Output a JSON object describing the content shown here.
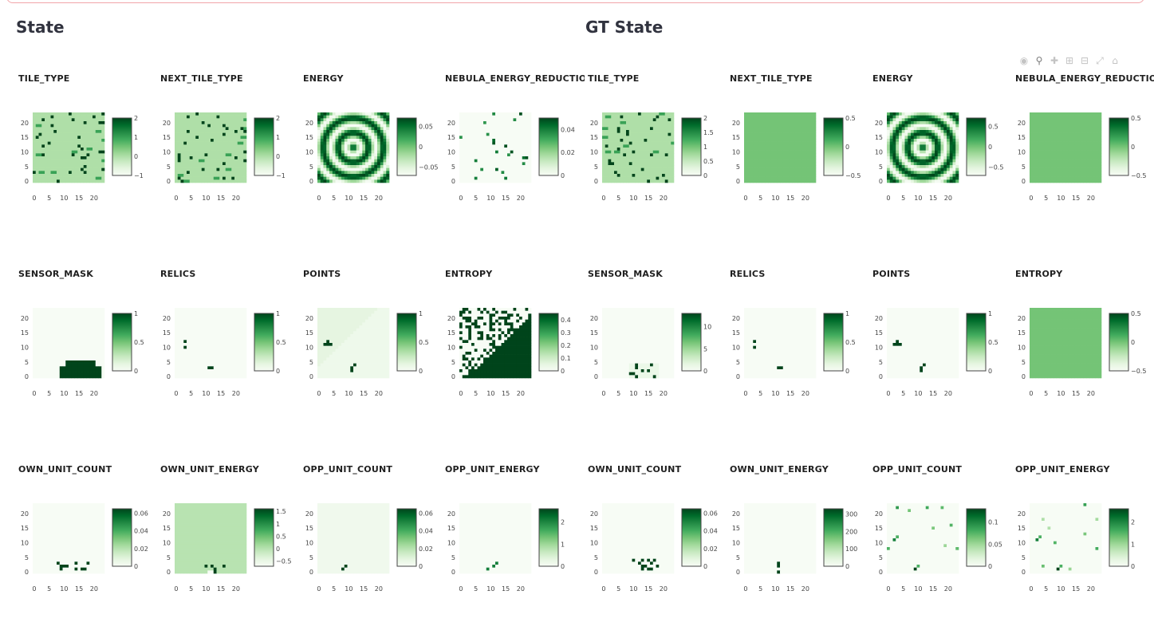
{
  "sections": [
    {
      "title": "State"
    },
    {
      "title": "GT State"
    }
  ],
  "toolbar": {
    "icons": [
      "camera-icon",
      "zoom-icon",
      "pan-icon",
      "zoom-in-icon",
      "zoom-out-icon",
      "autoscale-icon",
      "home-icon"
    ]
  },
  "colors": {
    "colorscale": "Greens",
    "scale_light": "#f7fcf5",
    "scale_dark": "#00441b",
    "alert_border": "#f2a5a9"
  },
  "chart_data": [
    {
      "type": "heatmap",
      "section": "State",
      "title": "TILE_TYPE",
      "pattern": "tiles",
      "x_ticks": [
        "0",
        "5",
        "10",
        "15",
        "20"
      ],
      "y_ticks": [
        "0",
        "5",
        "10",
        "15",
        "20"
      ],
      "colorbar_ticks": [
        "2",
        "1",
        "0",
        "−1"
      ],
      "zrange": [
        -1,
        2
      ]
    },
    {
      "type": "heatmap",
      "section": "State",
      "title": "NEXT_TILE_TYPE",
      "pattern": "tiles",
      "x_ticks": [
        "0",
        "5",
        "10",
        "15",
        "20"
      ],
      "y_ticks": [
        "0",
        "5",
        "10",
        "15",
        "20"
      ],
      "colorbar_ticks": [
        "2",
        "1",
        "0",
        "−1"
      ],
      "zrange": [
        -1,
        2
      ]
    },
    {
      "type": "heatmap",
      "section": "State",
      "title": "ENERGY",
      "pattern": "rings",
      "x_ticks": [
        "0",
        "5",
        "10",
        "15",
        "20"
      ],
      "y_ticks": [
        "0",
        "5",
        "10",
        "15",
        "20"
      ],
      "colorbar_ticks": [
        "0.05",
        "0",
        "−0.05"
      ],
      "zrange": [
        -0.07,
        0.07
      ]
    },
    {
      "type": "heatmap",
      "section": "State",
      "title": "NEBULA_ENERGY_REDUCTION",
      "pattern": "sparse",
      "x_ticks": [
        "0",
        "5",
        "10",
        "15",
        "20"
      ],
      "y_ticks": [
        "0",
        "5",
        "10",
        "15",
        "20"
      ],
      "colorbar_ticks": [
        "0.04",
        "0.02",
        "0"
      ],
      "zrange": [
        0,
        0.05
      ]
    },
    {
      "type": "heatmap",
      "section": "GT State",
      "title": "TILE_TYPE",
      "pattern": "tiles",
      "x_ticks": [
        "0",
        "5",
        "10",
        "15",
        "20"
      ],
      "y_ticks": [
        "0",
        "5",
        "10",
        "15",
        "20"
      ],
      "colorbar_ticks": [
        "2",
        "1.5",
        "1",
        "0.5",
        "0"
      ],
      "zrange": [
        0,
        2
      ]
    },
    {
      "type": "heatmap",
      "section": "GT State",
      "title": "NEXT_TILE_TYPE",
      "pattern": "uniform",
      "x_ticks": [
        "0",
        "5",
        "10",
        "15",
        "20"
      ],
      "y_ticks": [
        "0",
        "5",
        "10",
        "15",
        "20"
      ],
      "colorbar_ticks": [
        "0.5",
        "0",
        "−0.5"
      ],
      "zrange": [
        -0.5,
        0.5
      ]
    },
    {
      "type": "heatmap",
      "section": "GT State",
      "title": "ENERGY",
      "pattern": "rings",
      "x_ticks": [
        "0",
        "5",
        "10",
        "15",
        "20"
      ],
      "y_ticks": [
        "0",
        "5",
        "10",
        "15",
        "20"
      ],
      "colorbar_ticks": [
        "0.5",
        "0",
        "−0.5"
      ],
      "zrange": [
        -0.7,
        0.7
      ]
    },
    {
      "type": "heatmap",
      "section": "GT State",
      "title": "NEBULA_ENERGY_REDUCTION",
      "pattern": "uniform",
      "x_ticks": [
        "0",
        "5",
        "10",
        "15",
        "20"
      ],
      "y_ticks": [
        "0",
        "5",
        "10",
        "15",
        "20"
      ],
      "colorbar_ticks": [
        "0.5",
        "0",
        "−0.5"
      ],
      "zrange": [
        -0.5,
        0.5
      ]
    },
    {
      "type": "heatmap",
      "section": "State",
      "title": "SENSOR_MASK",
      "pattern": "mask",
      "x_ticks": [
        "0",
        "5",
        "10",
        "15",
        "20"
      ],
      "y_ticks": [
        "0",
        "5",
        "10",
        "15",
        "20"
      ],
      "colorbar_ticks": [
        "1",
        "0.5",
        "0"
      ],
      "zrange": [
        0,
        1
      ]
    },
    {
      "type": "heatmap",
      "section": "State",
      "title": "RELICS",
      "pattern": "relics",
      "x_ticks": [
        "0",
        "5",
        "10",
        "15",
        "20"
      ],
      "y_ticks": [
        "0",
        "5",
        "10",
        "15",
        "20"
      ],
      "colorbar_ticks": [
        "1",
        "0.5",
        "0"
      ],
      "zrange": [
        0,
        1
      ]
    },
    {
      "type": "heatmap",
      "section": "State",
      "title": "POINTS",
      "pattern": "points",
      "x_ticks": [
        "0",
        "5",
        "10",
        "15",
        "20"
      ],
      "y_ticks": [
        "0",
        "5",
        "10",
        "15",
        "20"
      ],
      "colorbar_ticks": [
        "1",
        "0.5",
        "0"
      ],
      "zrange": [
        0,
        1
      ]
    },
    {
      "type": "heatmap",
      "section": "State",
      "title": "ENTROPY",
      "pattern": "entropy",
      "x_ticks": [
        "0",
        "5",
        "10",
        "15",
        "20"
      ],
      "y_ticks": [
        "0",
        "5",
        "10",
        "15",
        "20"
      ],
      "colorbar_ticks": [
        "0.4",
        "0.3",
        "0.2",
        "0.1",
        "0"
      ],
      "zrange": [
        0,
        0.45
      ]
    },
    {
      "type": "heatmap",
      "section": "GT State",
      "title": "SENSOR_MASK",
      "pattern": "sensor_gt",
      "x_ticks": [
        "0",
        "5",
        "10",
        "15",
        "20"
      ],
      "y_ticks": [
        "0",
        "5",
        "10",
        "15",
        "20"
      ],
      "colorbar_ticks": [
        "10",
        "5",
        "0"
      ],
      "zrange": [
        0,
        13
      ]
    },
    {
      "type": "heatmap",
      "section": "GT State",
      "title": "RELICS",
      "pattern": "relics",
      "x_ticks": [
        "0",
        "5",
        "10",
        "15",
        "20"
      ],
      "y_ticks": [
        "0",
        "5",
        "10",
        "15",
        "20"
      ],
      "colorbar_ticks": [
        "1",
        "0.5",
        "0"
      ],
      "zrange": [
        0,
        1
      ]
    },
    {
      "type": "heatmap",
      "section": "GT State",
      "title": "POINTS",
      "pattern": "points_gt",
      "x_ticks": [
        "0",
        "5",
        "10",
        "15",
        "20"
      ],
      "y_ticks": [
        "0",
        "5",
        "10",
        "15",
        "20"
      ],
      "colorbar_ticks": [
        "1",
        "0.5",
        "0"
      ],
      "zrange": [
        0,
        1
      ]
    },
    {
      "type": "heatmap",
      "section": "GT State",
      "title": "ENTROPY",
      "pattern": "uniform",
      "x_ticks": [
        "0",
        "5",
        "10",
        "15",
        "20"
      ],
      "y_ticks": [
        "0",
        "5",
        "10",
        "15",
        "20"
      ],
      "colorbar_ticks": [
        "0.5",
        "0",
        "−0.5"
      ],
      "zrange": [
        -0.5,
        0.5
      ]
    },
    {
      "type": "heatmap",
      "section": "State",
      "title": "OWN_UNIT_COUNT",
      "pattern": "units_top",
      "x_ticks": [
        "0",
        "5",
        "10",
        "15",
        "20"
      ],
      "y_ticks": [
        "0",
        "5",
        "10",
        "15",
        "20"
      ],
      "colorbar_ticks": [
        "0.06",
        "0.04",
        "0.02",
        "0"
      ],
      "zrange": [
        0,
        0.065
      ]
    },
    {
      "type": "heatmap",
      "section": "State",
      "title": "OWN_UNIT_ENERGY",
      "pattern": "own_energy",
      "x_ticks": [
        "0",
        "5",
        "10",
        "15",
        "20"
      ],
      "y_ticks": [
        "0",
        "5",
        "10",
        "15",
        "20"
      ],
      "colorbar_ticks": [
        "1.5",
        "1",
        "0.5",
        "0",
        "−0.5"
      ],
      "zrange": [
        -0.7,
        1.6
      ]
    },
    {
      "type": "heatmap",
      "section": "State",
      "title": "OPP_UNIT_COUNT",
      "pattern": "opp_count",
      "x_ticks": [
        "0",
        "5",
        "10",
        "15",
        "20"
      ],
      "y_ticks": [
        "0",
        "5",
        "10",
        "15",
        "20"
      ],
      "colorbar_ticks": [
        "0.06",
        "0.04",
        "0.02",
        "0"
      ],
      "zrange": [
        0,
        0.065
      ]
    },
    {
      "type": "heatmap",
      "section": "State",
      "title": "OPP_UNIT_ENERGY",
      "pattern": "opp_energy",
      "x_ticks": [
        "0",
        "5",
        "10",
        "15",
        "20"
      ],
      "y_ticks": [
        "0",
        "5",
        "10",
        "15",
        "20"
      ],
      "colorbar_ticks": [
        "2",
        "1",
        "0"
      ],
      "zrange": [
        0,
        2.6
      ]
    },
    {
      "type": "heatmap",
      "section": "GT State",
      "title": "OWN_UNIT_COUNT",
      "pattern": "units_top_gt",
      "x_ticks": [
        "0",
        "5",
        "10",
        "15",
        "20"
      ],
      "y_ticks": [
        "0",
        "5",
        "10",
        "15",
        "20"
      ],
      "colorbar_ticks": [
        "0.06",
        "0.04",
        "0.02",
        "0"
      ],
      "zrange": [
        0,
        0.065
      ]
    },
    {
      "type": "heatmap",
      "section": "GT State",
      "title": "OWN_UNIT_ENERGY",
      "pattern": "own_energy_gt",
      "x_ticks": [
        "0",
        "5",
        "10",
        "15",
        "20"
      ],
      "y_ticks": [
        "0",
        "5",
        "10",
        "15",
        "20"
      ],
      "colorbar_ticks": [
        "300",
        "200",
        "100",
        "0"
      ],
      "zrange": [
        0,
        330
      ]
    },
    {
      "type": "heatmap",
      "section": "GT State",
      "title": "OPP_UNIT_COUNT",
      "pattern": "opp_gt",
      "x_ticks": [
        "0",
        "5",
        "10",
        "15",
        "20"
      ],
      "y_ticks": [
        "0",
        "5",
        "10",
        "15",
        "20"
      ],
      "colorbar_ticks": [
        "0.1",
        "0.05",
        "0"
      ],
      "zrange": [
        0,
        0.13
      ]
    },
    {
      "type": "heatmap",
      "section": "GT State",
      "title": "OPP_UNIT_ENERGY",
      "pattern": "opp_gt",
      "x_ticks": [
        "0",
        "5",
        "10",
        "15",
        "20"
      ],
      "y_ticks": [
        "0",
        "5",
        "10",
        "15",
        "20"
      ],
      "colorbar_ticks": [
        "2",
        "1",
        "0"
      ],
      "zrange": [
        0,
        2.6
      ]
    }
  ]
}
